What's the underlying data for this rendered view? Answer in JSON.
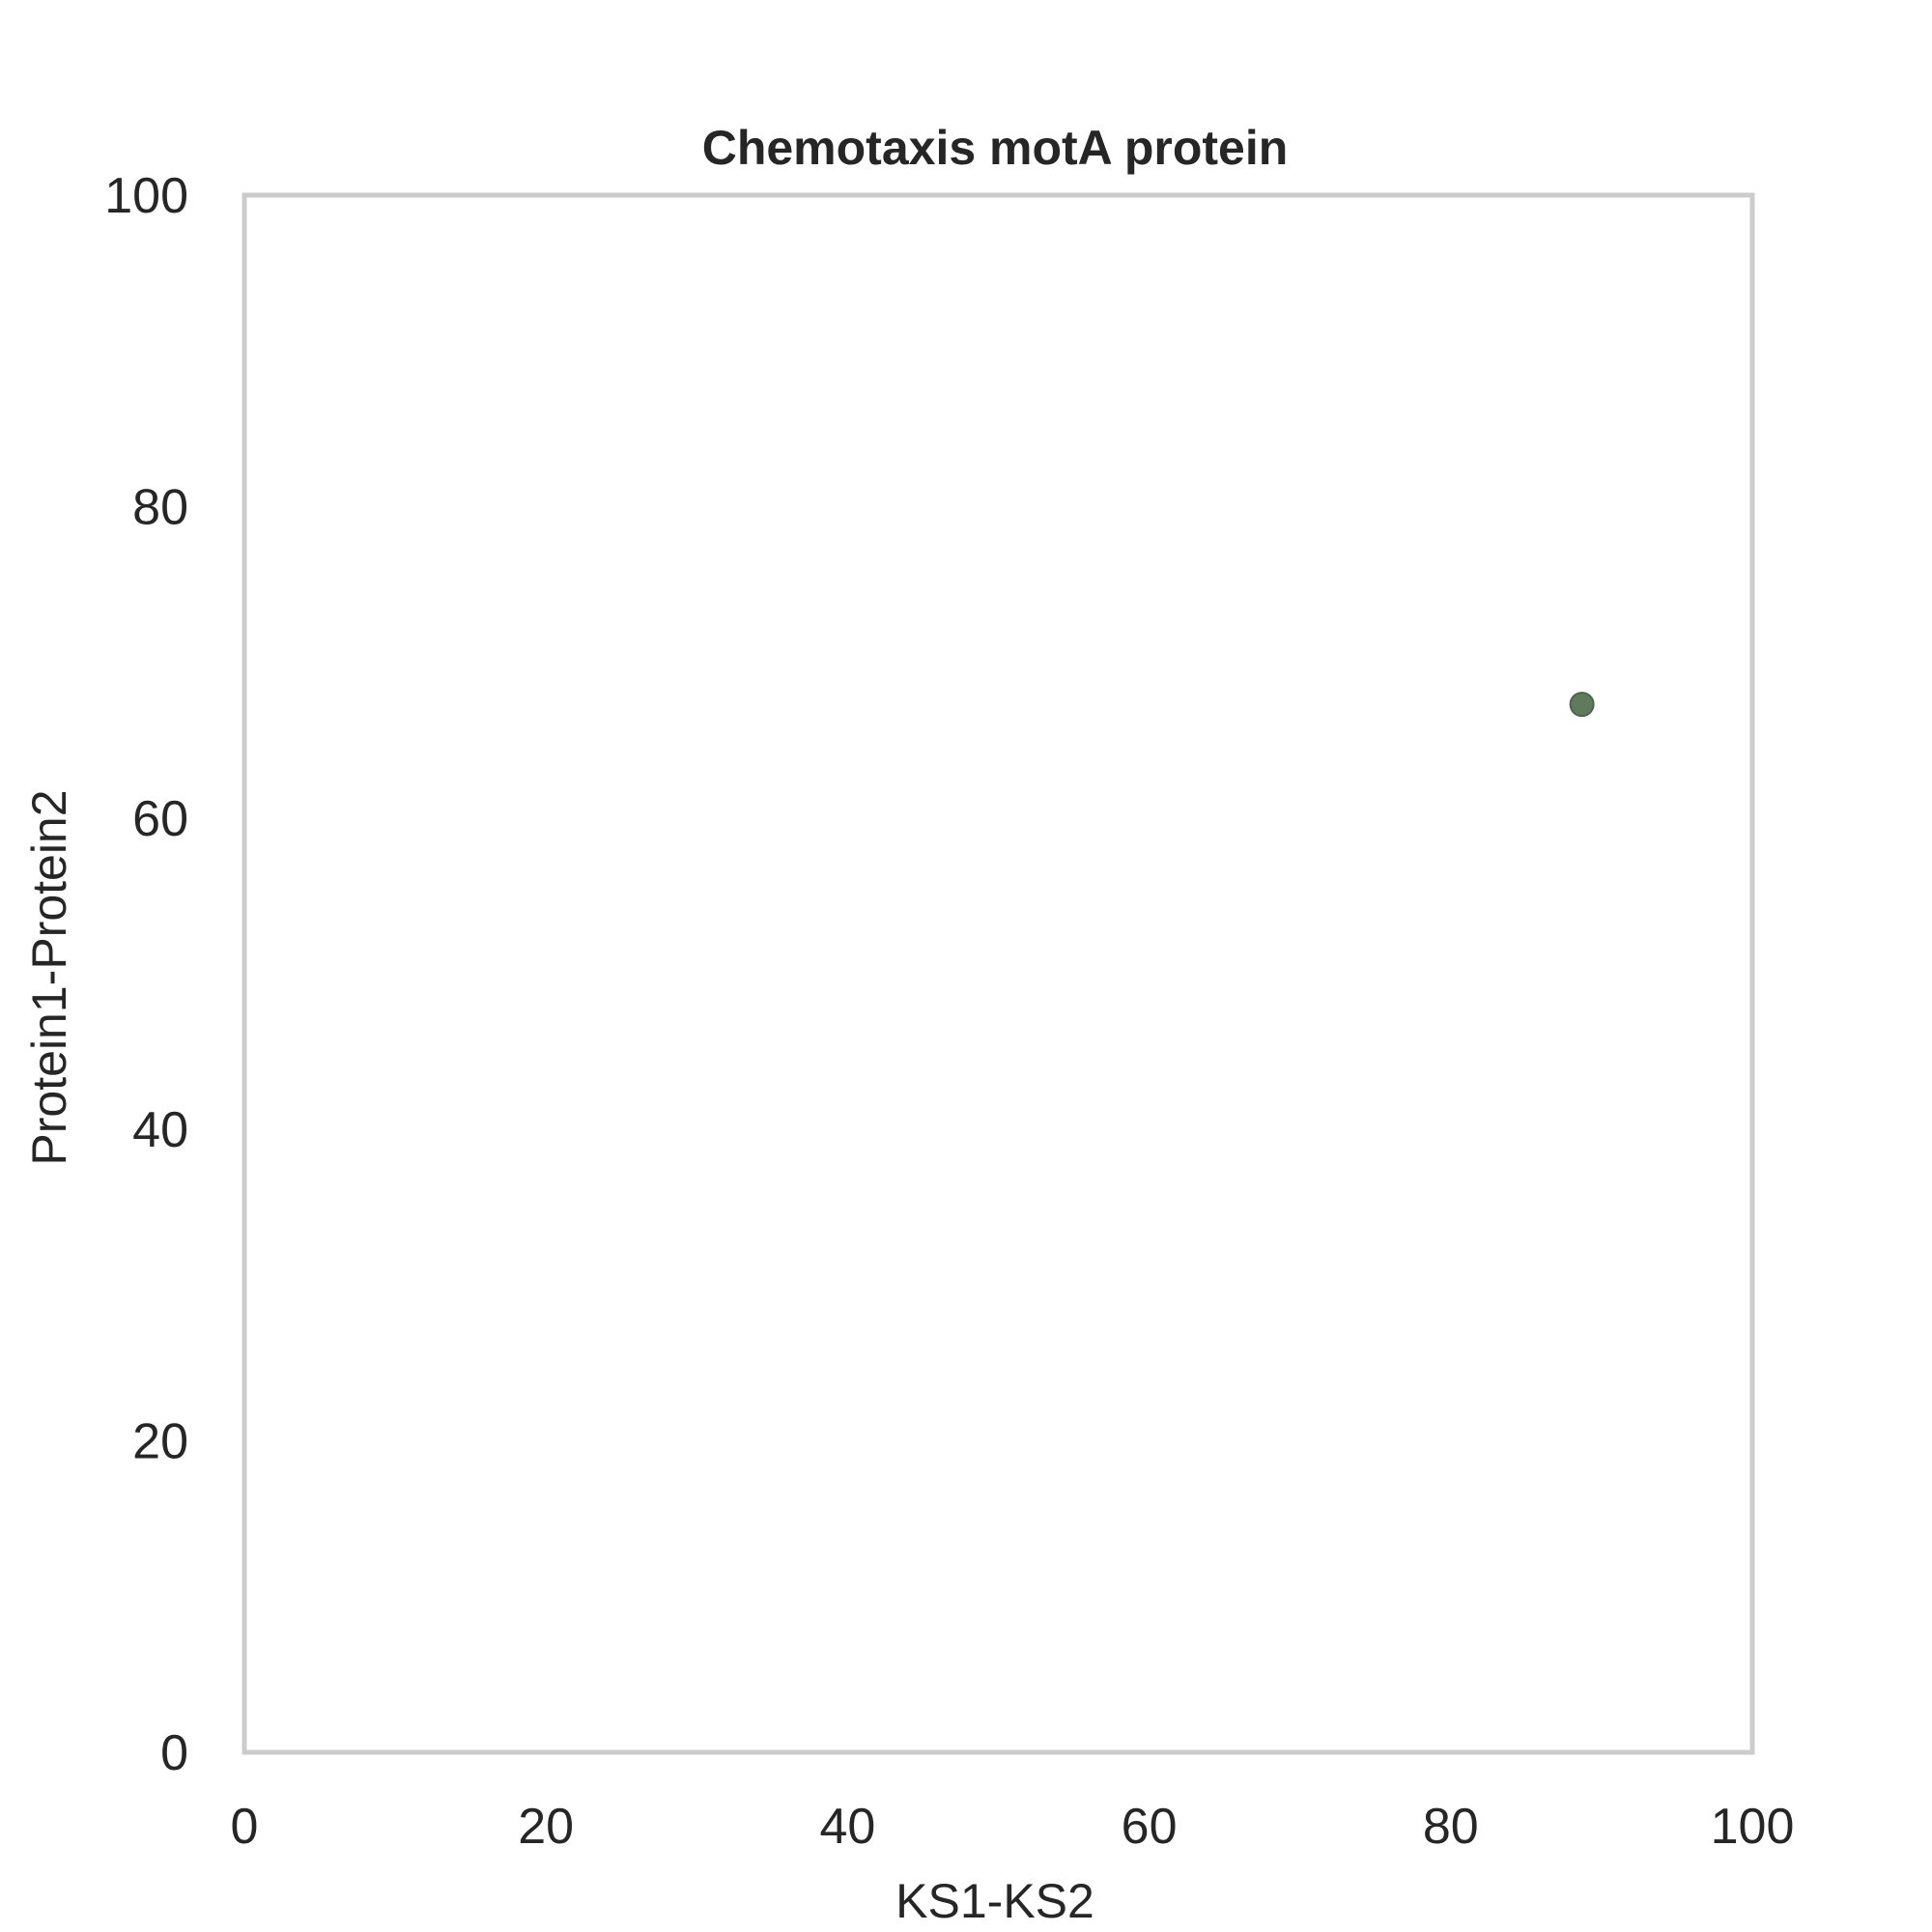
{
  "chart_data": {
    "type": "scatter",
    "title": "Chemotaxis motA protein",
    "xlabel": "KS1-KS2",
    "ylabel": "Protein1-Protein2",
    "xlim": [
      0,
      100
    ],
    "ylim": [
      0,
      100
    ],
    "xticks": [
      "0",
      "20",
      "40",
      "60",
      "80",
      "100"
    ],
    "yticks": [
      "0",
      "20",
      "40",
      "60",
      "80",
      "100"
    ],
    "grid": false,
    "series": [
      {
        "points": [
          {
            "x": 88.7,
            "y": 67.3
          }
        ],
        "color": "#5f7a5c"
      }
    ],
    "colors": {
      "frame": "#cccccc",
      "text": "#262626",
      "background": "#ffffff"
    }
  }
}
